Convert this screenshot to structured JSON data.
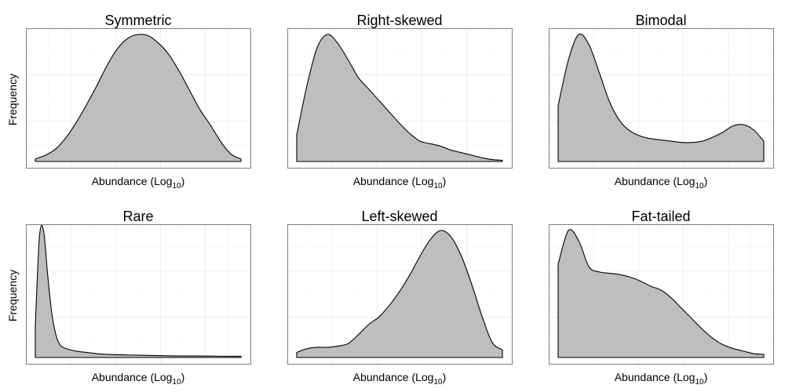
{
  "figure": {
    "fill_color": "#bebebe",
    "line_color": "#000000",
    "ylabel": "Frequency",
    "xlabel_main": "Abundance (Log",
    "xlabel_sub": "10",
    "xlabel_close": ")"
  },
  "chart_data": [
    {
      "type": "area",
      "title": "Symmetric",
      "xlabel": "Abundance (Log10)",
      "ylabel": "Frequency",
      "grid": true,
      "x": [
        0,
        0.05,
        0.1,
        0.15,
        0.2,
        0.25,
        0.3,
        0.35,
        0.4,
        0.45,
        0.5,
        0.55,
        0.6,
        0.65,
        0.7,
        0.75,
        0.8,
        0.85,
        0.9,
        0.95,
        1
      ],
      "y": [
        0.02,
        0.05,
        0.1,
        0.19,
        0.31,
        0.45,
        0.6,
        0.76,
        0.89,
        0.97,
        1.0,
        0.99,
        0.93,
        0.84,
        0.71,
        0.56,
        0.41,
        0.29,
        0.16,
        0.06,
        0.02
      ]
    },
    {
      "type": "area",
      "title": "Right-skewed",
      "xlabel": "Abundance (Log10)",
      "ylabel": "",
      "grid": true,
      "x": [
        0,
        0.05,
        0.1,
        0.15,
        0.2,
        0.25,
        0.3,
        0.35,
        0.4,
        0.45,
        0.5,
        0.55,
        0.6,
        0.65,
        0.7,
        0.75,
        0.8,
        0.85,
        0.9,
        0.95,
        1
      ],
      "y": [
        0.21,
        0.6,
        0.9,
        1.0,
        0.93,
        0.8,
        0.66,
        0.57,
        0.48,
        0.39,
        0.3,
        0.22,
        0.16,
        0.14,
        0.12,
        0.09,
        0.07,
        0.05,
        0.03,
        0.015,
        0.01
      ]
    },
    {
      "type": "area",
      "title": "Bimodal",
      "xlabel": "Abundance (Log10)",
      "ylabel": "",
      "grid": true,
      "x": [
        0,
        0.05,
        0.1,
        0.15,
        0.2,
        0.25,
        0.3,
        0.35,
        0.4,
        0.45,
        0.5,
        0.55,
        0.6,
        0.65,
        0.7,
        0.75,
        0.8,
        0.85,
        0.9,
        0.95,
        1
      ],
      "y": [
        0.44,
        0.8,
        1.0,
        0.92,
        0.7,
        0.47,
        0.32,
        0.24,
        0.2,
        0.18,
        0.17,
        0.16,
        0.15,
        0.15,
        0.16,
        0.19,
        0.23,
        0.28,
        0.29,
        0.25,
        0.16
      ]
    },
    {
      "type": "area",
      "title": "Rare",
      "xlabel": "Abundance (Log10)",
      "ylabel": "Frequency",
      "grid": true,
      "x": [
        0,
        0.02,
        0.04,
        0.06,
        0.08,
        0.1,
        0.12,
        0.15,
        0.2,
        0.25,
        0.3,
        0.35,
        0.4,
        0.45,
        0.5,
        0.6,
        0.7,
        0.8,
        0.9,
        1
      ],
      "y": [
        0.25,
        0.95,
        1.0,
        0.65,
        0.35,
        0.18,
        0.1,
        0.07,
        0.05,
        0.04,
        0.03,
        0.025,
        0.022,
        0.02,
        0.018,
        0.015,
        0.012,
        0.012,
        0.01,
        0.01
      ]
    },
    {
      "type": "area",
      "title": "Left-skewed",
      "xlabel": "Abundance (Log10)",
      "ylabel": "",
      "grid": true,
      "x": [
        0,
        0.05,
        0.1,
        0.15,
        0.2,
        0.25,
        0.3,
        0.35,
        0.4,
        0.45,
        0.5,
        0.55,
        0.6,
        0.65,
        0.7,
        0.75,
        0.8,
        0.85,
        0.9,
        0.95,
        1
      ],
      "y": [
        0.04,
        0.07,
        0.08,
        0.08,
        0.09,
        0.11,
        0.18,
        0.26,
        0.32,
        0.41,
        0.52,
        0.65,
        0.8,
        0.93,
        1.0,
        0.95,
        0.8,
        0.58,
        0.33,
        0.12,
        0.06
      ]
    },
    {
      "type": "area",
      "title": "Fat-tailed",
      "xlabel": "Abundance (Log10)",
      "ylabel": "",
      "grid": true,
      "x": [
        0,
        0.05,
        0.1,
        0.15,
        0.2,
        0.25,
        0.3,
        0.35,
        0.4,
        0.45,
        0.5,
        0.55,
        0.6,
        0.65,
        0.7,
        0.75,
        0.8,
        0.85,
        0.9,
        0.95,
        1
      ],
      "y": [
        0.72,
        0.98,
        0.9,
        0.7,
        0.66,
        0.65,
        0.64,
        0.62,
        0.59,
        0.55,
        0.52,
        0.46,
        0.38,
        0.3,
        0.22,
        0.15,
        0.1,
        0.07,
        0.05,
        0.03,
        0.025
      ]
    }
  ]
}
